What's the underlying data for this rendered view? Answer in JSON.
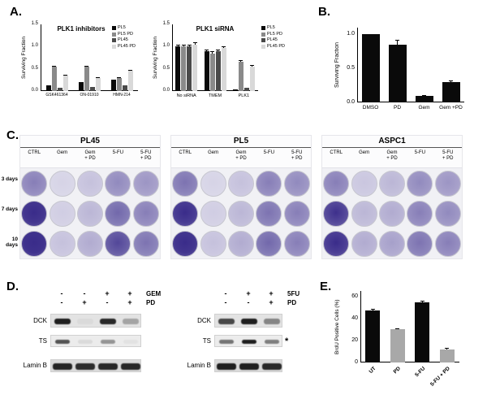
{
  "panels": {
    "a": {
      "label": "A."
    },
    "b": {
      "label": "B."
    },
    "c": {
      "label": "C."
    },
    "d": {
      "label": "D."
    },
    "e": {
      "label": "E."
    }
  },
  "chart_data": [
    {
      "id": "plk1_inhibitors",
      "type": "bar",
      "title": "PLK1 inhibitors",
      "ylabel": "Surviving Fraction",
      "ylim": [
        0,
        1.5
      ],
      "yticks": [
        [
          0,
          "0.0"
        ],
        [
          0.5,
          "0.5"
        ],
        [
          1,
          "1.0"
        ],
        [
          1.5,
          "1.5"
        ]
      ],
      "categories": [
        "GSK461364",
        "ON-01910",
        "HMN-214"
      ],
      "series": [
        {
          "name": "PL5",
          "color": "#0a0a0a",
          "values": [
            0.13,
            0.2,
            0.25
          ]
        },
        {
          "name": "PL5 PD",
          "color": "#8a8a8a",
          "values": [
            0.55,
            0.55,
            0.3
          ],
          "errors": [
            0.02,
            0.02,
            0.02
          ]
        },
        {
          "name": "PL45",
          "color": "#4a4a4a",
          "values": [
            0.08,
            0.1,
            0.13
          ]
        },
        {
          "name": "PL45 PD",
          "color": "#d9d9d9",
          "values": [
            0.35,
            0.3,
            0.45
          ],
          "errors": [
            0.02,
            0.02,
            0.03
          ]
        }
      ],
      "legend_position": "top-right",
      "grid": false
    },
    {
      "id": "plk1_sirna",
      "type": "bar",
      "title": "PLK1 siRNA",
      "ylabel": "Surviving Fraction",
      "ylim": [
        0,
        1.5
      ],
      "yticks": [
        [
          0,
          "0.0"
        ],
        [
          0.5,
          "0.5"
        ],
        [
          1,
          "1.0"
        ],
        [
          1.5,
          "1.5"
        ]
      ],
      "categories": [
        "No siRNA",
        "TMEM",
        "PLK1"
      ],
      "series": [
        {
          "name": "PL5",
          "color": "#0a0a0a",
          "values": [
            1.0,
            0.9,
            0.04
          ],
          "errors": [
            0.05,
            0.04,
            0
          ]
        },
        {
          "name": "PL5 PD",
          "color": "#8a8a8a",
          "values": [
            1.0,
            0.85,
            0.65
          ],
          "errors": [
            0.04,
            0.05,
            0.04
          ]
        },
        {
          "name": "PL45",
          "color": "#4a4a4a",
          "values": [
            1.0,
            0.9,
            0.08
          ],
          "errors": [
            0.05,
            0.04,
            0
          ]
        },
        {
          "name": "PL45 PD",
          "color": "#d9d9d9",
          "values": [
            1.05,
            0.97,
            0.55
          ],
          "errors": [
            0.04,
            0.03,
            0.04
          ]
        }
      ],
      "legend_position": "top-right",
      "grid": false
    },
    {
      "id": "panel_b",
      "type": "bar",
      "title": "",
      "ylabel": "Surviving Fraction",
      "ylim": [
        0,
        1.1
      ],
      "yticks": [
        [
          0,
          "0.0"
        ],
        [
          0.5,
          "0.5"
        ],
        [
          1,
          "1.0"
        ]
      ],
      "categories": [
        "DMSO",
        "PD",
        "Gem",
        "Gem +PD"
      ],
      "values": [
        1.0,
        0.85,
        0.1,
        0.3
      ],
      "errors": [
        0,
        0.07,
        0.01,
        0.02
      ],
      "bar_color": "#0a0a0a",
      "grid": false
    },
    {
      "id": "panel_e",
      "type": "bar",
      "title": "",
      "ylabel": "BrdU Positive Cells (%)",
      "ylim": [
        0,
        65
      ],
      "yticks": [
        [
          0,
          "0"
        ],
        [
          20,
          "20"
        ],
        [
          40,
          "40"
        ],
        [
          60,
          "60"
        ]
      ],
      "categories": [
        "UT",
        "PD",
        "5-FU",
        "5-FU + PD"
      ],
      "values": [
        47,
        30,
        55,
        12
      ],
      "errors": [
        2,
        1,
        1.5,
        1
      ],
      "colors": [
        "#0a0a0a",
        "#a8a8a8",
        "#0a0a0a",
        "#a8a8a8"
      ],
      "grid": false
    }
  ],
  "colony_assay": {
    "row_labels": [
      "3 days",
      "7 days",
      "10 days"
    ],
    "col_labels": [
      "CTRL",
      "Gem",
      "Gem\n+ PD",
      "5-FU",
      "5-FU\n+ PD"
    ],
    "stain_palette": {
      "light": "#efeef5",
      "dark": "#3a2c8a"
    },
    "cell_lines": [
      {
        "name": "PL45",
        "wells": [
          [
            0.5,
            0.12,
            0.2,
            0.45,
            0.4
          ],
          [
            0.95,
            0.15,
            0.25,
            0.6,
            0.5
          ],
          [
            0.97,
            0.2,
            0.3,
            0.75,
            0.55
          ]
        ]
      },
      {
        "name": "PL5",
        "wells": [
          [
            0.55,
            0.12,
            0.2,
            0.5,
            0.45
          ],
          [
            0.92,
            0.15,
            0.25,
            0.55,
            0.5
          ],
          [
            0.95,
            0.2,
            0.3,
            0.6,
            0.5
          ]
        ]
      },
      {
        "name": "ASPC1",
        "wells": [
          [
            0.5,
            0.18,
            0.25,
            0.45,
            0.4
          ],
          [
            0.85,
            0.25,
            0.3,
            0.5,
            0.45
          ],
          [
            0.9,
            0.3,
            0.35,
            0.55,
            0.5
          ]
        ]
      }
    ]
  },
  "western_blots": [
    {
      "id": "gem_blot",
      "treatments": [
        {
          "label": "GEM",
          "signs": [
            "-",
            "-",
            "+",
            "+"
          ]
        },
        {
          "label": "PD",
          "signs": [
            "-",
            "+",
            "-",
            "+"
          ]
        }
      ],
      "bands": [
        {
          "label": "DCK",
          "intensities": [
            0.95,
            0.04,
            0.9,
            0.3
          ]
        },
        {
          "label": "TS",
          "intensities": [
            0.7,
            0.08,
            0.4,
            0.04
          ]
        },
        {
          "label": "Lamin B",
          "intensities": [
            0.92,
            0.88,
            0.9,
            0.9
          ]
        }
      ]
    },
    {
      "id": "fu_blot",
      "treatments": [
        {
          "label": "5FU",
          "signs": [
            "-",
            "+",
            "+"
          ]
        },
        {
          "label": "PD",
          "signs": [
            "-",
            "-",
            "+"
          ]
        }
      ],
      "bands": [
        {
          "label": "DCK",
          "intensities": [
            0.75,
            0.95,
            0.45
          ]
        },
        {
          "label": "TS",
          "intensities": [
            0.55,
            0.95,
            0.5
          ],
          "annotation": "*"
        },
        {
          "label": "Lamin B",
          "intensities": [
            0.95,
            0.95,
            0.9
          ]
        }
      ]
    }
  ]
}
